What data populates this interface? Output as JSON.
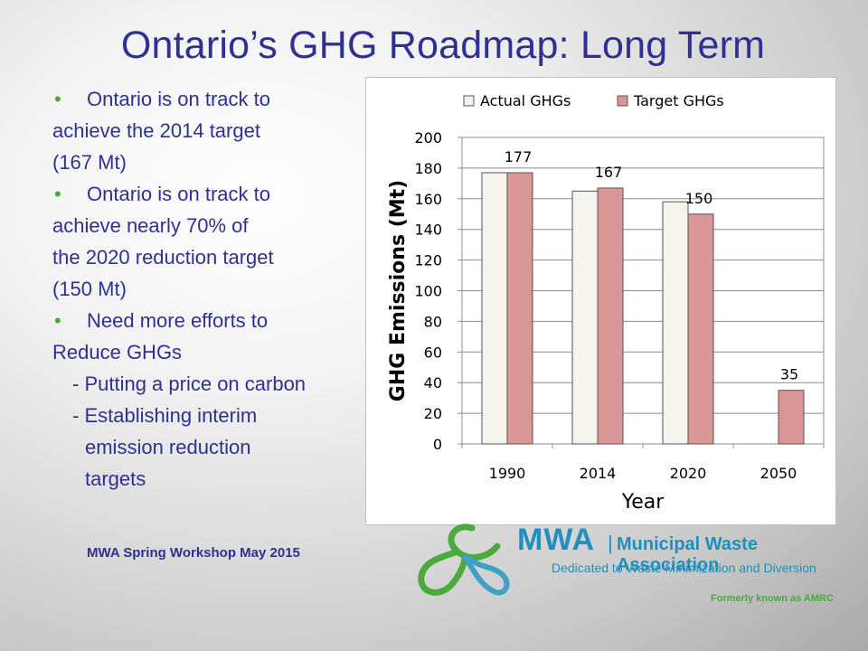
{
  "slide": {
    "title": "Ontario’s GHG Roadmap: Long Term",
    "bullets": [
      {
        "type": "bullet",
        "text": "Ontario is on track to"
      },
      {
        "type": "cont",
        "text": "achieve the 2014 target"
      },
      {
        "type": "cont",
        "text": "(167 Mt)"
      },
      {
        "type": "bullet",
        "text": "Ontario is on track to"
      },
      {
        "type": "cont",
        "text": "achieve nearly 70% of"
      },
      {
        "type": "cont",
        "text": "the 2020 reduction target"
      },
      {
        "type": "cont",
        "text": "(150 Mt)"
      },
      {
        "type": "bullet",
        "text": "Need more efforts to"
      },
      {
        "type": "cont",
        "text": "Reduce GHGs"
      },
      {
        "type": "sub",
        "text": "- Putting a price on carbon"
      },
      {
        "type": "sub",
        "text": "- Establishing interim"
      },
      {
        "type": "sub2",
        "text": "emission reduction"
      },
      {
        "type": "sub2",
        "text": "targets"
      }
    ],
    "bullet_glyph": "•",
    "footer": "MWA Spring Workshop May 2015"
  },
  "logo": {
    "name": "MWA",
    "separator": "|",
    "full_name": "Municipal Waste Association",
    "tagline": "Dedicated to Waste Minimization and Diversion",
    "formerly": "Formerly known as AMRC",
    "colors": {
      "blue": "#1f8fbf",
      "green": "#4aaa3a"
    }
  },
  "chart_data": {
    "type": "bar",
    "categories": [
      "1990",
      "2014",
      "2020",
      "2050"
    ],
    "series": [
      {
        "name": "Actual GHGs",
        "values": [
          177,
          165,
          158,
          null
        ],
        "color": "#f4f4ec",
        "labels": [
          null,
          null,
          null,
          null
        ]
      },
      {
        "name": "Target GHGs",
        "values": [
          177,
          167,
          150,
          35
        ],
        "color": "#d99694",
        "labels": [
          "177",
          "167",
          "150",
          "35"
        ]
      }
    ],
    "title": "",
    "xlabel": "Year",
    "ylabel": "GHG Emissions (Mt)",
    "ylim": [
      0,
      200
    ],
    "yticks": [
      0,
      20,
      40,
      60,
      80,
      100,
      120,
      140,
      160,
      180,
      200
    ],
    "grid": true,
    "legend": "top"
  }
}
